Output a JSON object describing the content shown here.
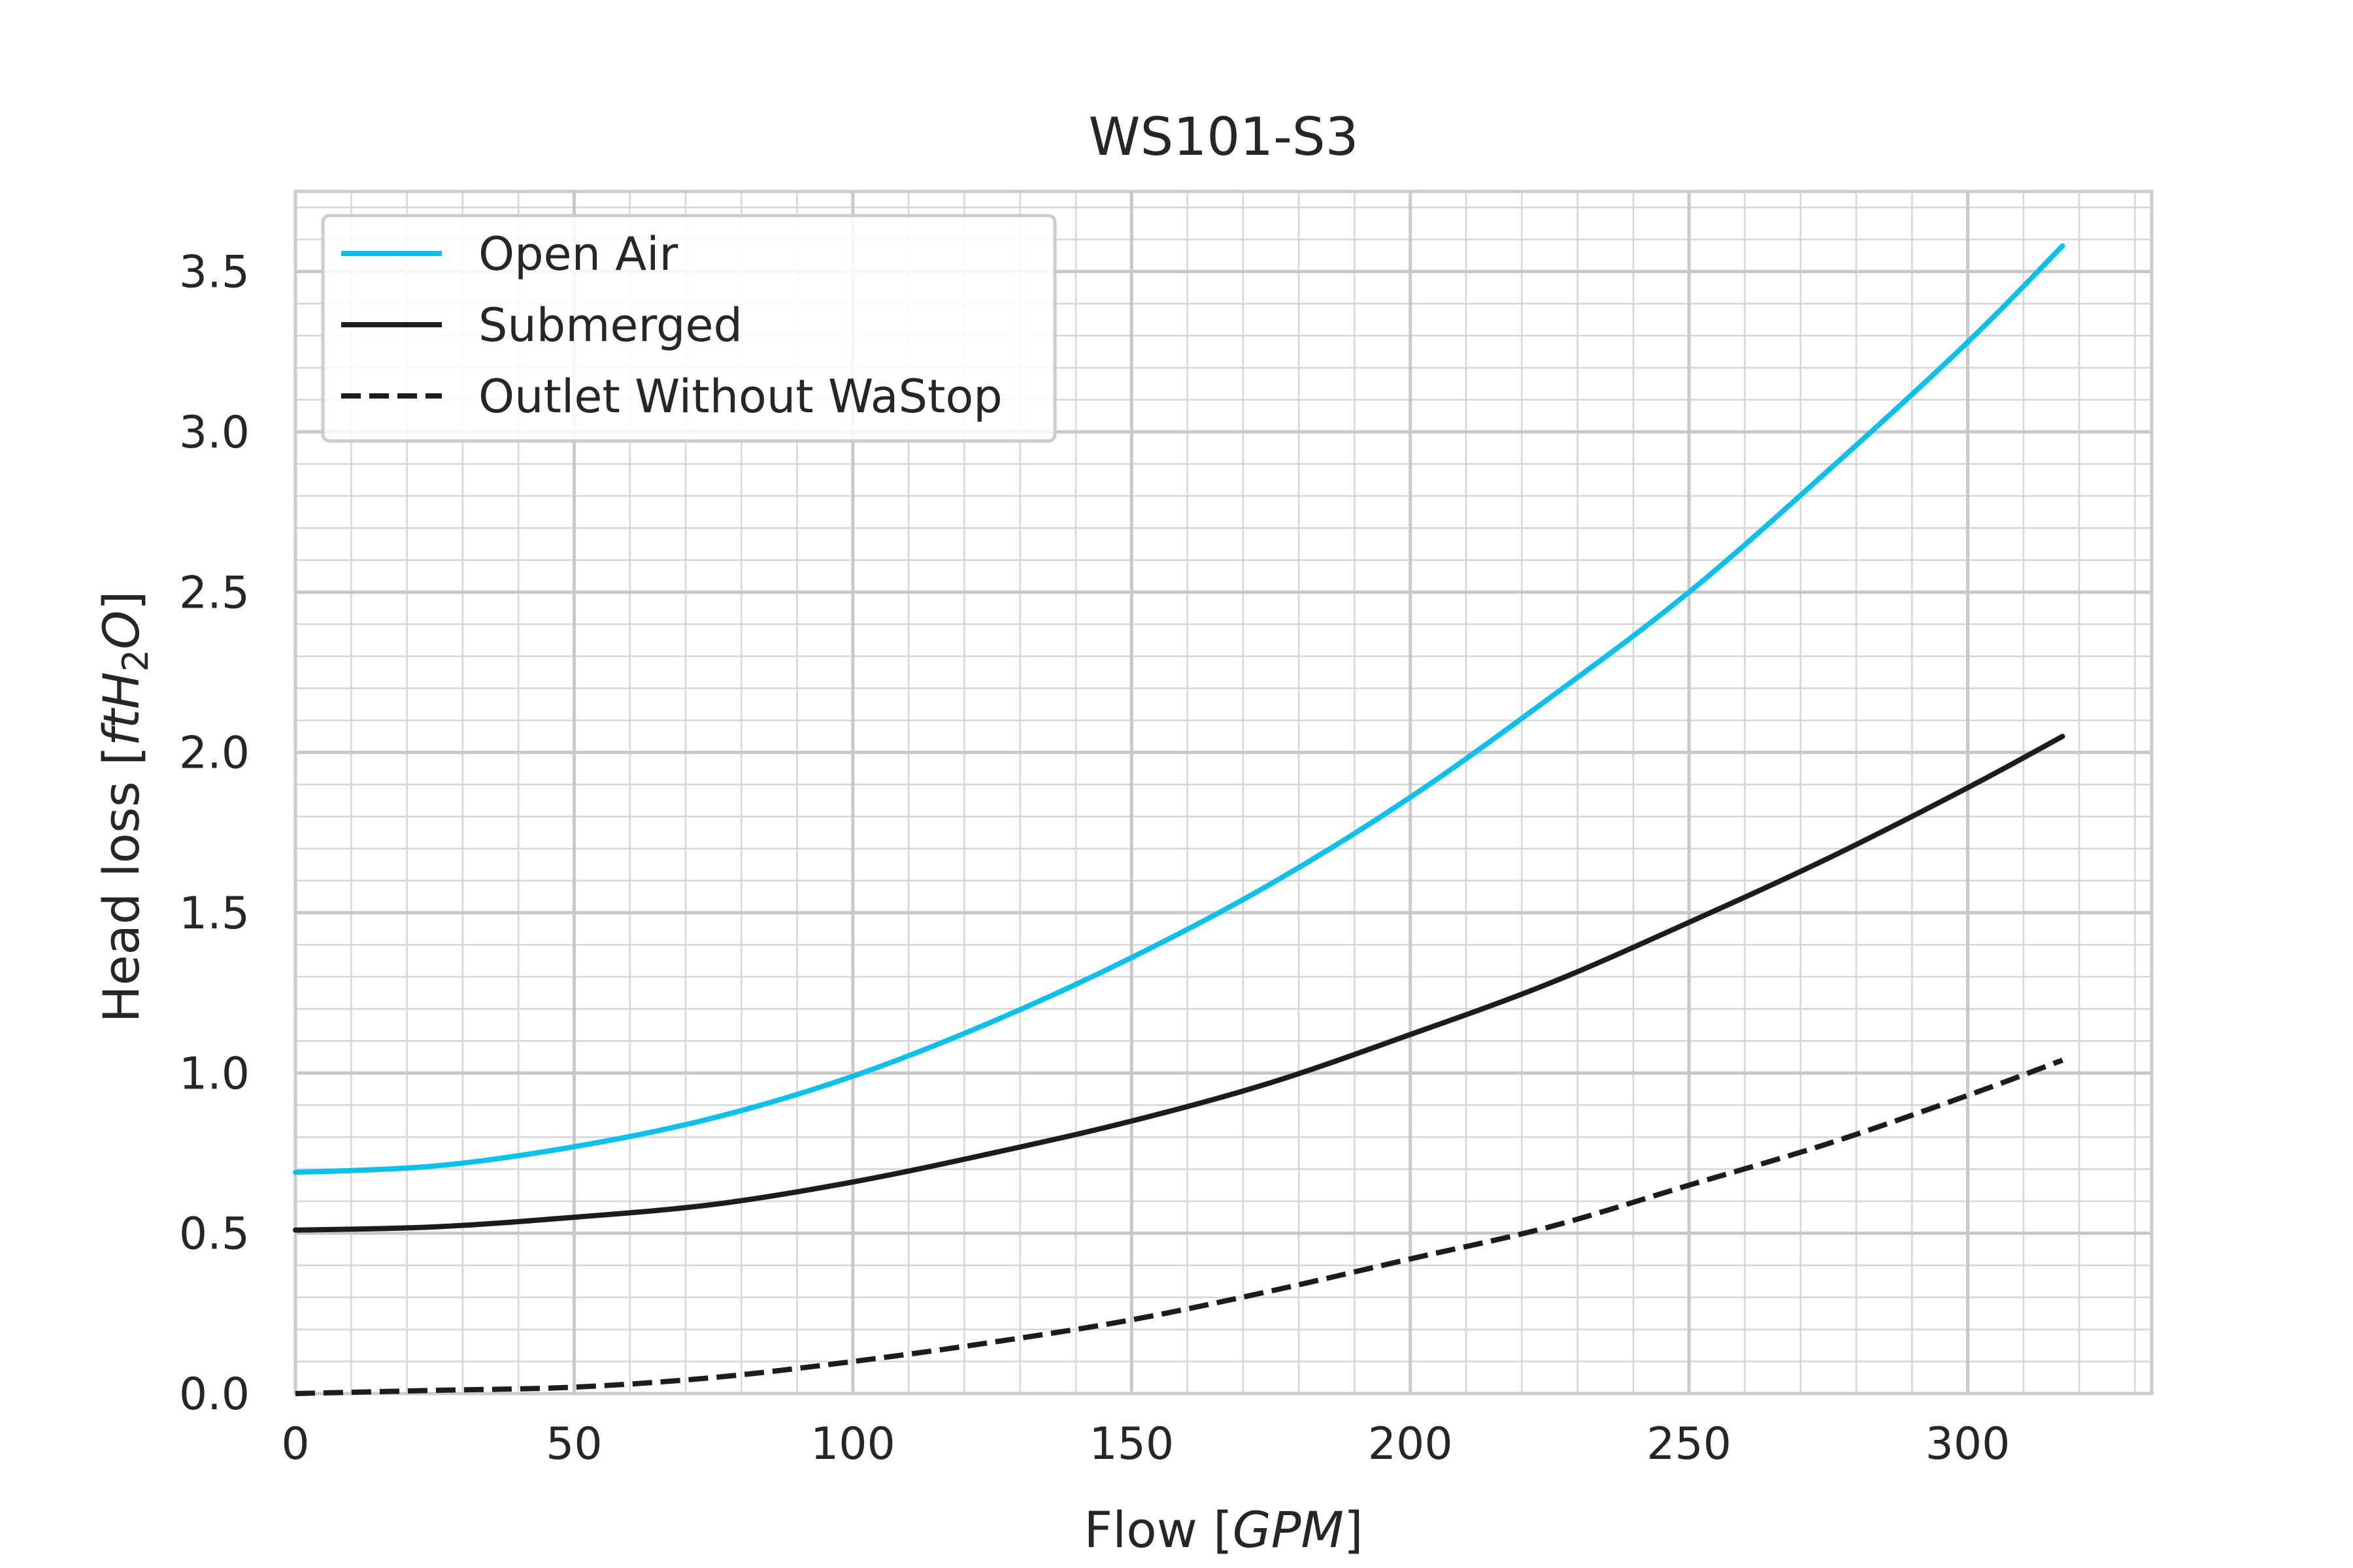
{
  "chart_data": {
    "type": "line",
    "title": "WS101-S3",
    "xlabel": "Flow [",
    "xlabel_math": "GPM",
    "xlabel_end": "]",
    "ylabel": "Head loss [",
    "ylabel_math_pre": "ftH",
    "ylabel_math_sub": "2",
    "ylabel_math_post": "O",
    "ylabel_end": "]",
    "xlim": [
      0,
      333
    ],
    "ylim": [
      0,
      3.75
    ],
    "xticks": [
      0,
      50,
      100,
      150,
      200,
      250,
      300
    ],
    "xtick_labels": [
      "0",
      "50",
      "100",
      "150",
      "200",
      "250",
      "300"
    ],
    "yticks": [
      0.0,
      0.5,
      1.0,
      1.5,
      2.0,
      2.5,
      3.0,
      3.5
    ],
    "ytick_labels": [
      "0.0",
      "0.5",
      "1.0",
      "1.5",
      "2.0",
      "2.5",
      "3.0",
      "3.5"
    ],
    "grid": true,
    "minor_grid": true,
    "legend_position": "top-left",
    "x": [
      0,
      25,
      50,
      75,
      100,
      125,
      150,
      175,
      200,
      225,
      250,
      275,
      300,
      317
    ],
    "series": [
      {
        "name": "Open Air",
        "color": "#0bc0ec",
        "dash": "solid",
        "values": [
          0.69,
          0.71,
          0.77,
          0.86,
          0.99,
          1.16,
          1.36,
          1.59,
          1.86,
          2.17,
          2.5,
          2.88,
          3.28,
          3.58
        ]
      },
      {
        "name": "Submerged",
        "color": "#1c1c1c",
        "dash": "solid",
        "values": [
          0.51,
          0.52,
          0.55,
          0.59,
          0.66,
          0.75,
          0.85,
          0.97,
          1.12,
          1.28,
          1.47,
          1.67,
          1.89,
          2.05
        ]
      },
      {
        "name": "Outlet Without WaStop",
        "color": "#1c1c1c",
        "dash": "dashed",
        "values": [
          0.0,
          0.01,
          0.02,
          0.05,
          0.1,
          0.16,
          0.23,
          0.32,
          0.42,
          0.52,
          0.65,
          0.78,
          0.93,
          1.04
        ]
      }
    ]
  }
}
